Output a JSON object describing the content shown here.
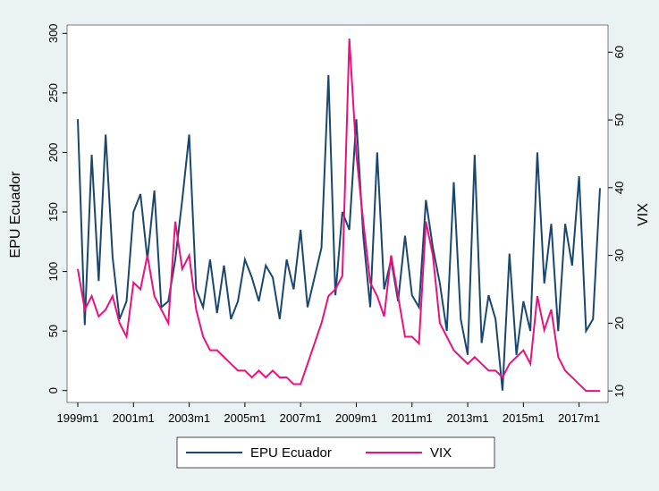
{
  "chart_data": {
    "type": "line",
    "x": [
      "1999m1",
      "1999m4",
      "1999m7",
      "1999m10",
      "2000m1",
      "2000m4",
      "2000m7",
      "2000m10",
      "2001m1",
      "2001m4",
      "2001m7",
      "2001m10",
      "2002m1",
      "2002m4",
      "2002m7",
      "2002m10",
      "2003m1",
      "2003m4",
      "2003m7",
      "2003m10",
      "2004m1",
      "2004m4",
      "2004m7",
      "2004m10",
      "2005m1",
      "2005m4",
      "2005m7",
      "2005m10",
      "2006m1",
      "2006m4",
      "2006m7",
      "2006m10",
      "2007m1",
      "2007m4",
      "2007m7",
      "2007m10",
      "2008m1",
      "2008m4",
      "2008m7",
      "2008m10",
      "2009m1",
      "2009m4",
      "2009m7",
      "2009m10",
      "2010m1",
      "2010m4",
      "2010m7",
      "2010m10",
      "2011m1",
      "2011m4",
      "2011m7",
      "2011m10",
      "2012m1",
      "2012m4",
      "2012m7",
      "2012m10",
      "2013m1",
      "2013m4",
      "2013m7",
      "2013m10",
      "2014m1",
      "2014m4",
      "2014m7",
      "2014m10",
      "2015m1",
      "2015m4",
      "2015m7",
      "2015m10",
      "2016m1",
      "2016m4",
      "2016m7",
      "2016m10",
      "2017m1",
      "2017m4",
      "2017m7",
      "2017m10"
    ],
    "series": [
      {
        "name": "EPU Ecuador",
        "color": "#1a476f",
        "values": [
          228,
          55,
          198,
          92,
          215,
          112,
          60,
          75,
          150,
          165,
          110,
          168,
          70,
          75,
          110,
          160,
          215,
          85,
          70,
          110,
          65,
          105,
          60,
          75,
          110,
          95,
          75,
          105,
          95,
          60,
          110,
          85,
          135,
          70,
          95,
          120,
          265,
          80,
          150,
          135,
          228,
          130,
          70,
          200,
          85,
          110,
          75,
          130,
          80,
          70,
          160,
          120,
          90,
          50,
          175,
          60,
          30,
          198,
          40,
          80,
          60,
          0,
          115,
          30,
          75,
          50,
          200,
          90,
          140,
          50,
          140,
          105,
          180,
          50,
          60,
          170
        ]
      },
      {
        "name": "VIX",
        "color": "#e8117f",
        "axis": "y2",
        "values": [
          28,
          22,
          24,
          21,
          22,
          24,
          20,
          18,
          26,
          25,
          30,
          24,
          22,
          20,
          35,
          28,
          30,
          22,
          18,
          16,
          16,
          15,
          14,
          13,
          13,
          12,
          13,
          12,
          13,
          12,
          12,
          11,
          11,
          14,
          17,
          20,
          24,
          25,
          27,
          62,
          45,
          35,
          26,
          24,
          21,
          30,
          24,
          18,
          18,
          17,
          35,
          30,
          20,
          18,
          16,
          15,
          14,
          15,
          14,
          13,
          13,
          12,
          14,
          15,
          16,
          14,
          24,
          19,
          22,
          15,
          13,
          12,
          11,
          10,
          10,
          10
        ]
      }
    ],
    "xticks": [
      "1999m1",
      "2001m1",
      "2003m1",
      "2005m1",
      "2007m1",
      "2009m1",
      "2011m1",
      "2013m1",
      "2015m1",
      "2017m1"
    ],
    "ylabel": "EPU Ecuador",
    "y2label": "VIX",
    "ylim": [
      -10,
      307
    ],
    "yticks": [
      0,
      50,
      100,
      150,
      200,
      250,
      300
    ],
    "y2lim": [
      8.3,
      64
    ],
    "y2ticks": [
      10,
      20,
      30,
      40,
      50,
      60
    ]
  }
}
